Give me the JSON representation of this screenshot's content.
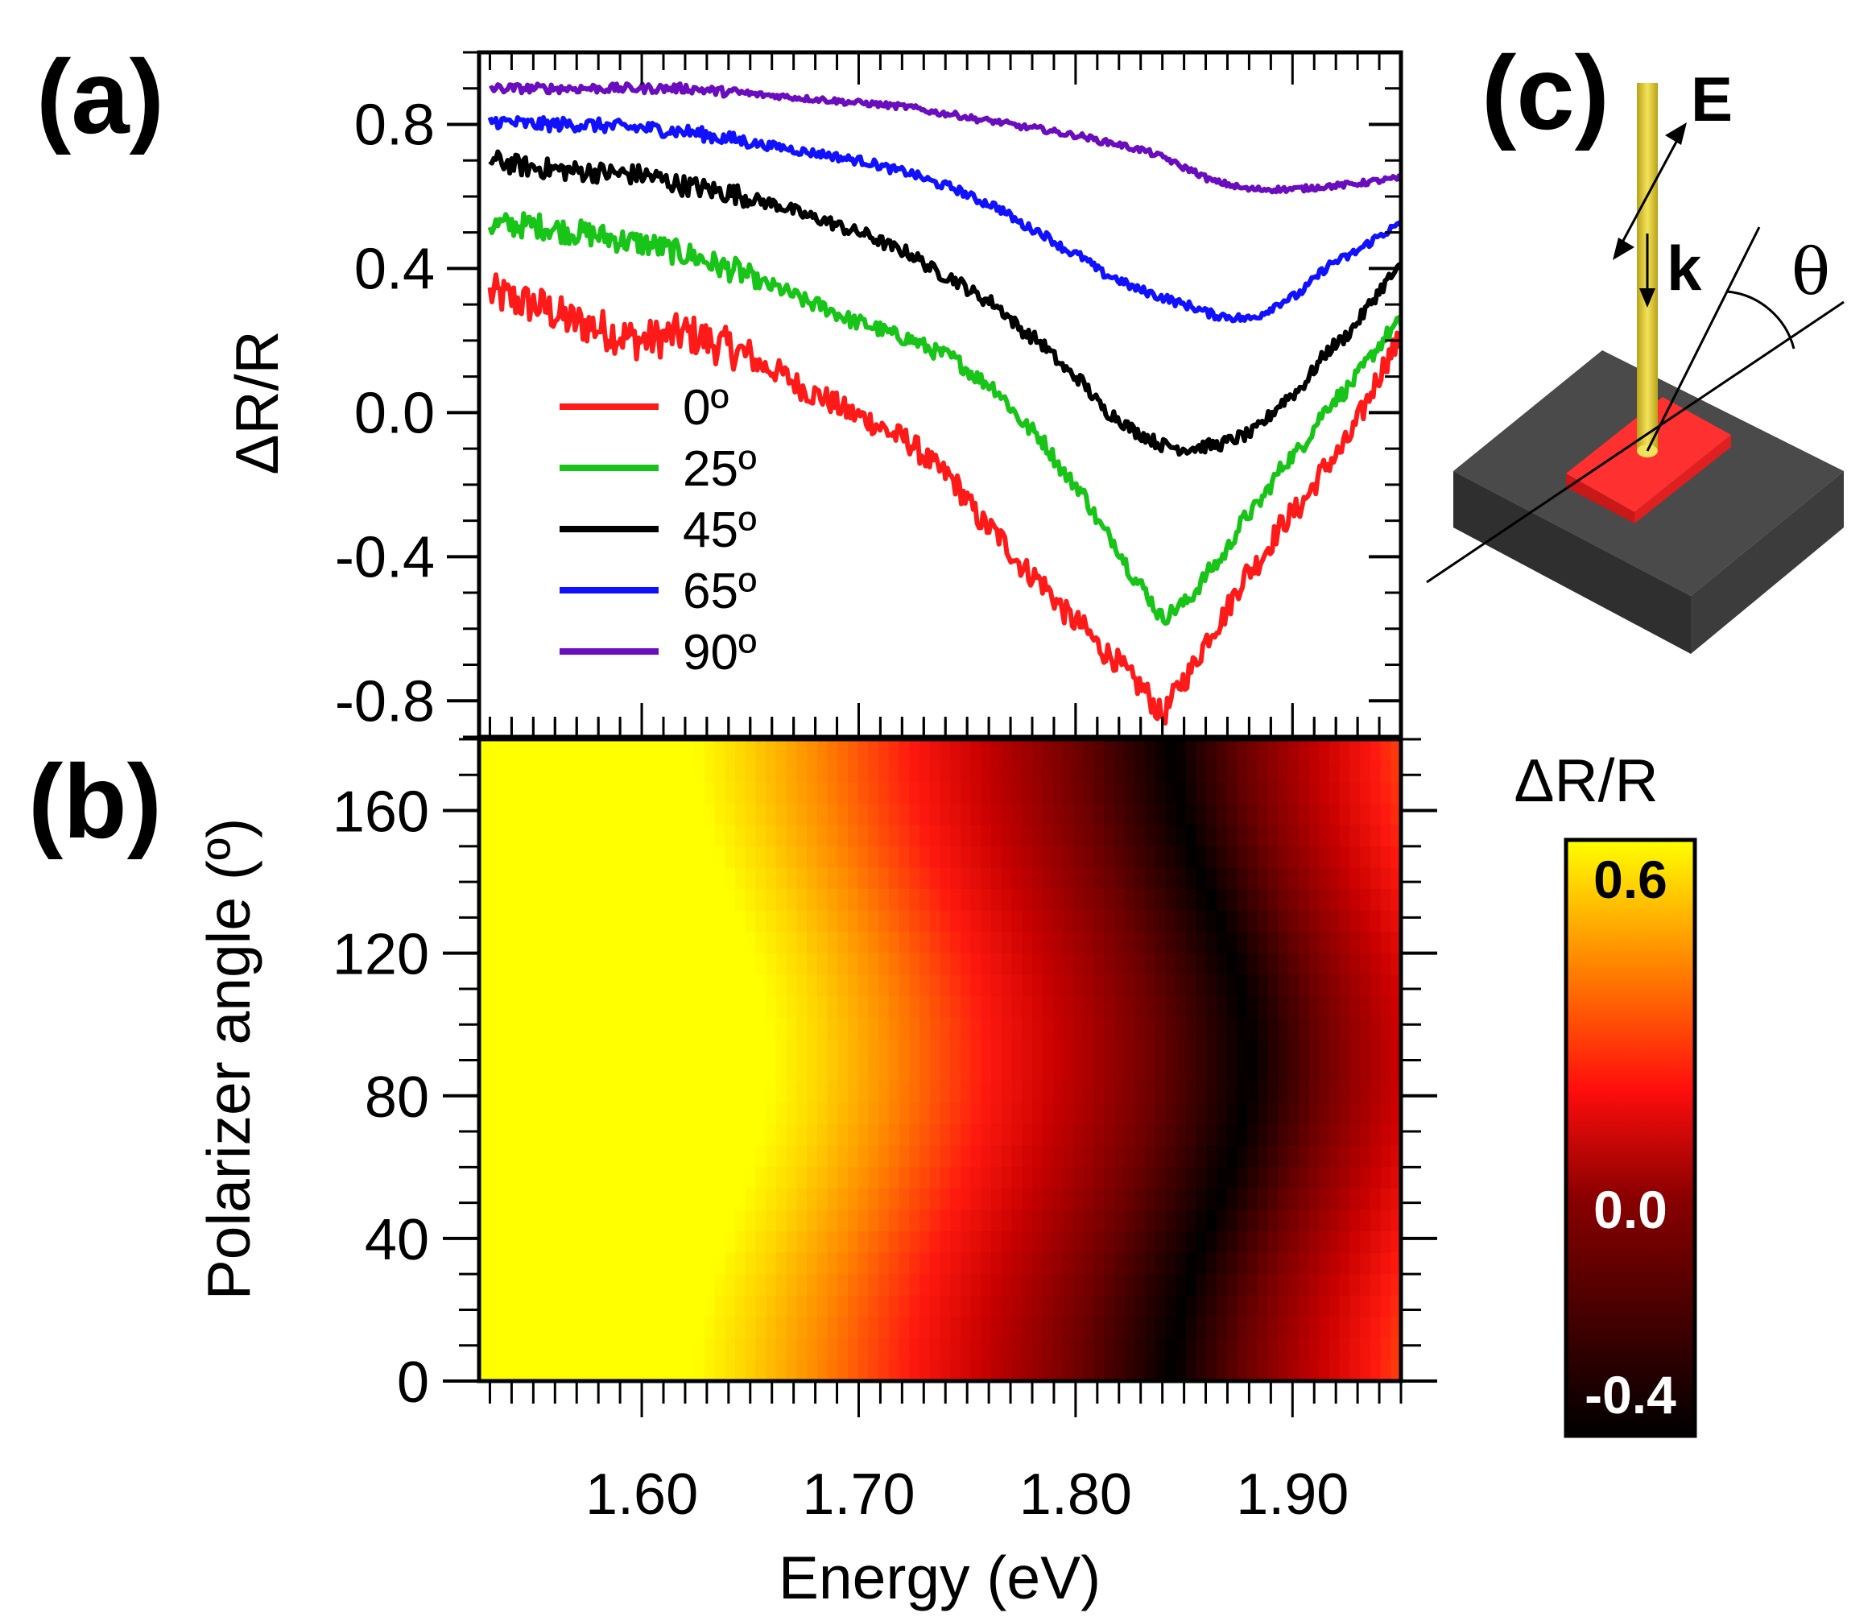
{
  "chart_data": [
    {
      "panel": "(a)",
      "type": "line",
      "ylabel": "ΔR/R",
      "xlabel": "",
      "xlim": [
        1.525,
        1.95
      ],
      "ylim": [
        -0.9,
        1.0
      ],
      "yticks": [
        "0.8",
        "0.4",
        "0.0",
        "-0.4",
        "-0.8"
      ],
      "ytick_values": [
        0.8,
        0.4,
        0.0,
        -0.4,
        -0.8
      ],
      "legend_position": "lower-left",
      "series": [
        {
          "name": "0º",
          "color": "#ff1a1a",
          "x": [
            1.53,
            1.55,
            1.57,
            1.6,
            1.62,
            1.64,
            1.66,
            1.68,
            1.7,
            1.72,
            1.74,
            1.76,
            1.78,
            1.8,
            1.815,
            1.83,
            1.84,
            1.85,
            1.865,
            1.88,
            1.9,
            1.92,
            1.95
          ],
          "y": [
            0.33,
            0.3,
            0.25,
            0.2,
            0.22,
            0.18,
            0.12,
            0.05,
            -0.01,
            -0.07,
            -0.17,
            -0.32,
            -0.45,
            -0.58,
            -0.67,
            -0.76,
            -0.84,
            -0.74,
            -0.59,
            -0.44,
            -0.28,
            -0.12,
            0.2
          ]
        },
        {
          "name": "25º",
          "color": "#17c417",
          "x": [
            1.53,
            1.55,
            1.57,
            1.6,
            1.62,
            1.64,
            1.66,
            1.68,
            1.7,
            1.72,
            1.74,
            1.76,
            1.78,
            1.8,
            1.815,
            1.83,
            1.84,
            1.85,
            1.865,
            1.88,
            1.9,
            1.92,
            1.95
          ],
          "y": [
            0.52,
            0.52,
            0.5,
            0.47,
            0.44,
            0.4,
            0.35,
            0.3,
            0.25,
            0.21,
            0.16,
            0.08,
            -0.05,
            -0.2,
            -0.34,
            -0.48,
            -0.57,
            -0.53,
            -0.42,
            -0.28,
            -0.12,
            0.04,
            0.25
          ]
        },
        {
          "name": "45º",
          "color": "#000000",
          "x": [
            1.53,
            1.55,
            1.57,
            1.6,
            1.62,
            1.64,
            1.66,
            1.68,
            1.7,
            1.72,
            1.74,
            1.76,
            1.78,
            1.8,
            1.815,
            1.83,
            1.84,
            1.85,
            1.865,
            1.88,
            1.9,
            1.92,
            1.95
          ],
          "y": [
            0.7,
            0.68,
            0.67,
            0.66,
            0.63,
            0.61,
            0.58,
            0.54,
            0.5,
            0.45,
            0.38,
            0.31,
            0.21,
            0.1,
            0.0,
            -0.06,
            -0.09,
            -0.1,
            -0.09,
            -0.06,
            0.05,
            0.19,
            0.4
          ]
        },
        {
          "name": "65º",
          "color": "#1111ff",
          "x": [
            1.53,
            1.55,
            1.57,
            1.6,
            1.62,
            1.64,
            1.66,
            1.68,
            1.7,
            1.72,
            1.74,
            1.76,
            1.78,
            1.8,
            1.815,
            1.83,
            1.84,
            1.85,
            1.865,
            1.88,
            1.9,
            1.92,
            1.95
          ],
          "y": [
            0.81,
            0.8,
            0.8,
            0.79,
            0.78,
            0.76,
            0.74,
            0.72,
            0.7,
            0.67,
            0.63,
            0.58,
            0.51,
            0.44,
            0.38,
            0.34,
            0.32,
            0.3,
            0.27,
            0.26,
            0.32,
            0.42,
            0.52
          ]
        },
        {
          "name": "90º",
          "color": "#6a0dbf",
          "x": [
            1.53,
            1.55,
            1.57,
            1.6,
            1.62,
            1.64,
            1.66,
            1.68,
            1.7,
            1.72,
            1.74,
            1.76,
            1.78,
            1.8,
            1.815,
            1.83,
            1.84,
            1.85,
            1.865,
            1.88,
            1.9,
            1.92,
            1.95
          ],
          "y": [
            0.9,
            0.9,
            0.9,
            0.9,
            0.9,
            0.89,
            0.88,
            0.87,
            0.86,
            0.85,
            0.83,
            0.81,
            0.79,
            0.77,
            0.75,
            0.73,
            0.71,
            0.68,
            0.64,
            0.62,
            0.62,
            0.63,
            0.65
          ]
        }
      ]
    },
    {
      "panel": "(b)",
      "type": "heatmap",
      "xlabel": "Energy (eV)",
      "ylabel": "Polarizer angle (º)",
      "xlim": [
        1.525,
        1.95
      ],
      "ylim": [
        0,
        180
      ],
      "xticks": [
        "1.60",
        "1.70",
        "1.80",
        "1.90"
      ],
      "xtick_values": [
        1.6,
        1.7,
        1.8,
        1.9
      ],
      "yticks": [
        "0",
        "40",
        "80",
        "120",
        "160"
      ],
      "ytick_values": [
        0,
        40,
        80,
        120,
        160
      ],
      "colorbar": {
        "title": "ΔR/R",
        "min": -0.4,
        "max": 0.6,
        "labels": [
          "0.6",
          "0.0",
          "-0.4"
        ],
        "label_values": [
          0.6,
          0.0,
          -0.4
        ]
      },
      "description_values": {
        "minimum_energy_at_0deg": 1.84,
        "minimum_energy_at_90deg": 1.875,
        "period_deg": 180
      }
    }
  ],
  "panel_c": {
    "label": "(c)",
    "vector_E": "E",
    "vector_k": "k",
    "angle": "θ"
  },
  "colors": {
    "axis": "#000000",
    "substrate": "#3a3a3a",
    "sample": "#ee2222",
    "beam": "#e3cf3a"
  }
}
